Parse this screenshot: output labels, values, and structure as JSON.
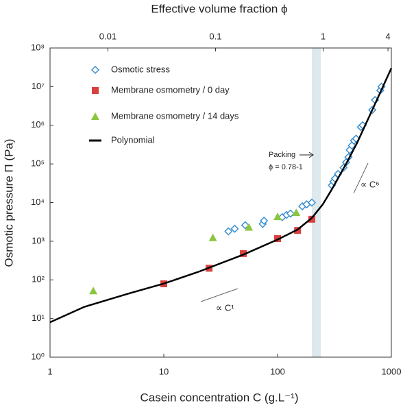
{
  "chart_data": {
    "type": "scatter",
    "title": "Effective volume fraction ϕ",
    "x_label": "Casein concentration C (g.L⁻¹)",
    "y_label": "Osmotic pressure Π (Pa)",
    "log_x": true,
    "log_y": true,
    "xlim": [
      1,
      1000
    ],
    "xticks": [
      1,
      10,
      100,
      1000
    ],
    "ylim": [
      1,
      100000000
    ],
    "yticks": [
      {
        "value": 1,
        "label": "10⁰"
      },
      {
        "value": 10,
        "label": "10¹"
      },
      {
        "value": 100,
        "label": "10²"
      },
      {
        "value": 1000,
        "label": "10³"
      },
      {
        "value": 10000,
        "label": "10⁴"
      },
      {
        "value": 100000,
        "label": "10⁵"
      },
      {
        "value": 1000000,
        "label": "10⁶"
      },
      {
        "value": 10000000,
        "label": "10⁷"
      },
      {
        "value": 100000000,
        "label": "10⁸"
      }
    ],
    "x2lim": [
      0.0029,
      4.3
    ],
    "x2ticks": [
      0.01,
      0.1,
      1,
      4
    ],
    "shaded_band": [
      200,
      240
    ],
    "annotations": [
      "Packing",
      "ϕ = 0.78-1",
      "∝ C⁶",
      "∝ C¹"
    ],
    "legend": "upper left",
    "series": [
      {
        "name": "Osmotic stress",
        "color": "#3b8fd0",
        "marker": "diamond",
        "x": [
          37,
          42,
          52,
          74,
          76,
          110,
          120,
          130,
          165,
          180,
          200,
          300,
          310,
          320,
          340,
          380,
          400,
          420,
          430,
          450,
          470,
          490,
          540,
          560,
          680,
          720,
          800,
          820
        ],
        "values": [
          1800,
          2100,
          2600,
          2800,
          3400,
          4200,
          4800,
          5200,
          8000,
          9000,
          10000,
          28000,
          35000,
          42000,
          55000,
          80000,
          110000,
          150000,
          230000,
          300000,
          400000,
          450000,
          900000,
          1000000,
          2500000,
          4500000,
          8000000,
          10000000
        ]
      },
      {
        "name": "Membrane osmometry / 0 day",
        "color": "#d9413f",
        "marker": "square",
        "x": [
          10,
          25,
          50,
          100,
          150,
          200
        ],
        "values": [
          79,
          200,
          480,
          1170,
          1900,
          3700
        ]
      },
      {
        "name": "Membrane osmometry / 14 days",
        "color": "#8cc63f",
        "marker": "triangle",
        "x": [
          2.4,
          27,
          56,
          100,
          146
        ],
        "values": [
          52,
          1230,
          2300,
          4300,
          5500
        ]
      },
      {
        "name": "Polynomial",
        "color": "#000000",
        "marker": "line",
        "x": [
          1,
          2,
          5,
          10,
          20,
          50,
          100,
          150,
          200,
          250,
          300,
          400,
          500,
          700,
          1000
        ],
        "values": [
          8,
          20,
          45,
          80,
          160,
          450,
          1100,
          2000,
          4000,
          9000,
          22000,
          100000,
          350000,
          3000000,
          30000000
        ]
      }
    ]
  }
}
